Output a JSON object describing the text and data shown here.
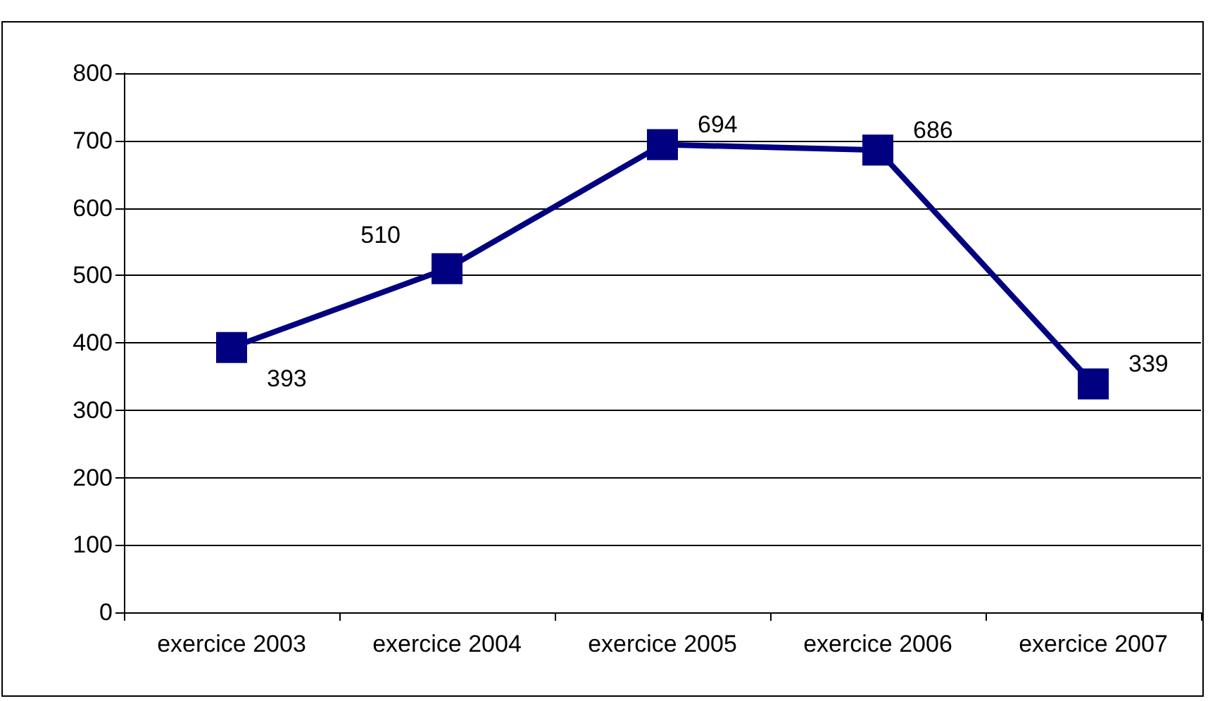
{
  "chart_data": {
    "type": "line",
    "categories": [
      "exercice 2003",
      "exercice 2004",
      "exercice 2005",
      "exercice 2006",
      "exercice 2007"
    ],
    "series": [
      {
        "color": "#000080",
        "values": [
          393,
          510,
          694,
          686,
          339
        ]
      }
    ],
    "ylim": [
      0,
      800
    ],
    "yticks": [
      0,
      100,
      200,
      300,
      400,
      500,
      600,
      700,
      800
    ],
    "grid": "y",
    "marker": "square",
    "line_style": "solid",
    "data_labels": true
  }
}
